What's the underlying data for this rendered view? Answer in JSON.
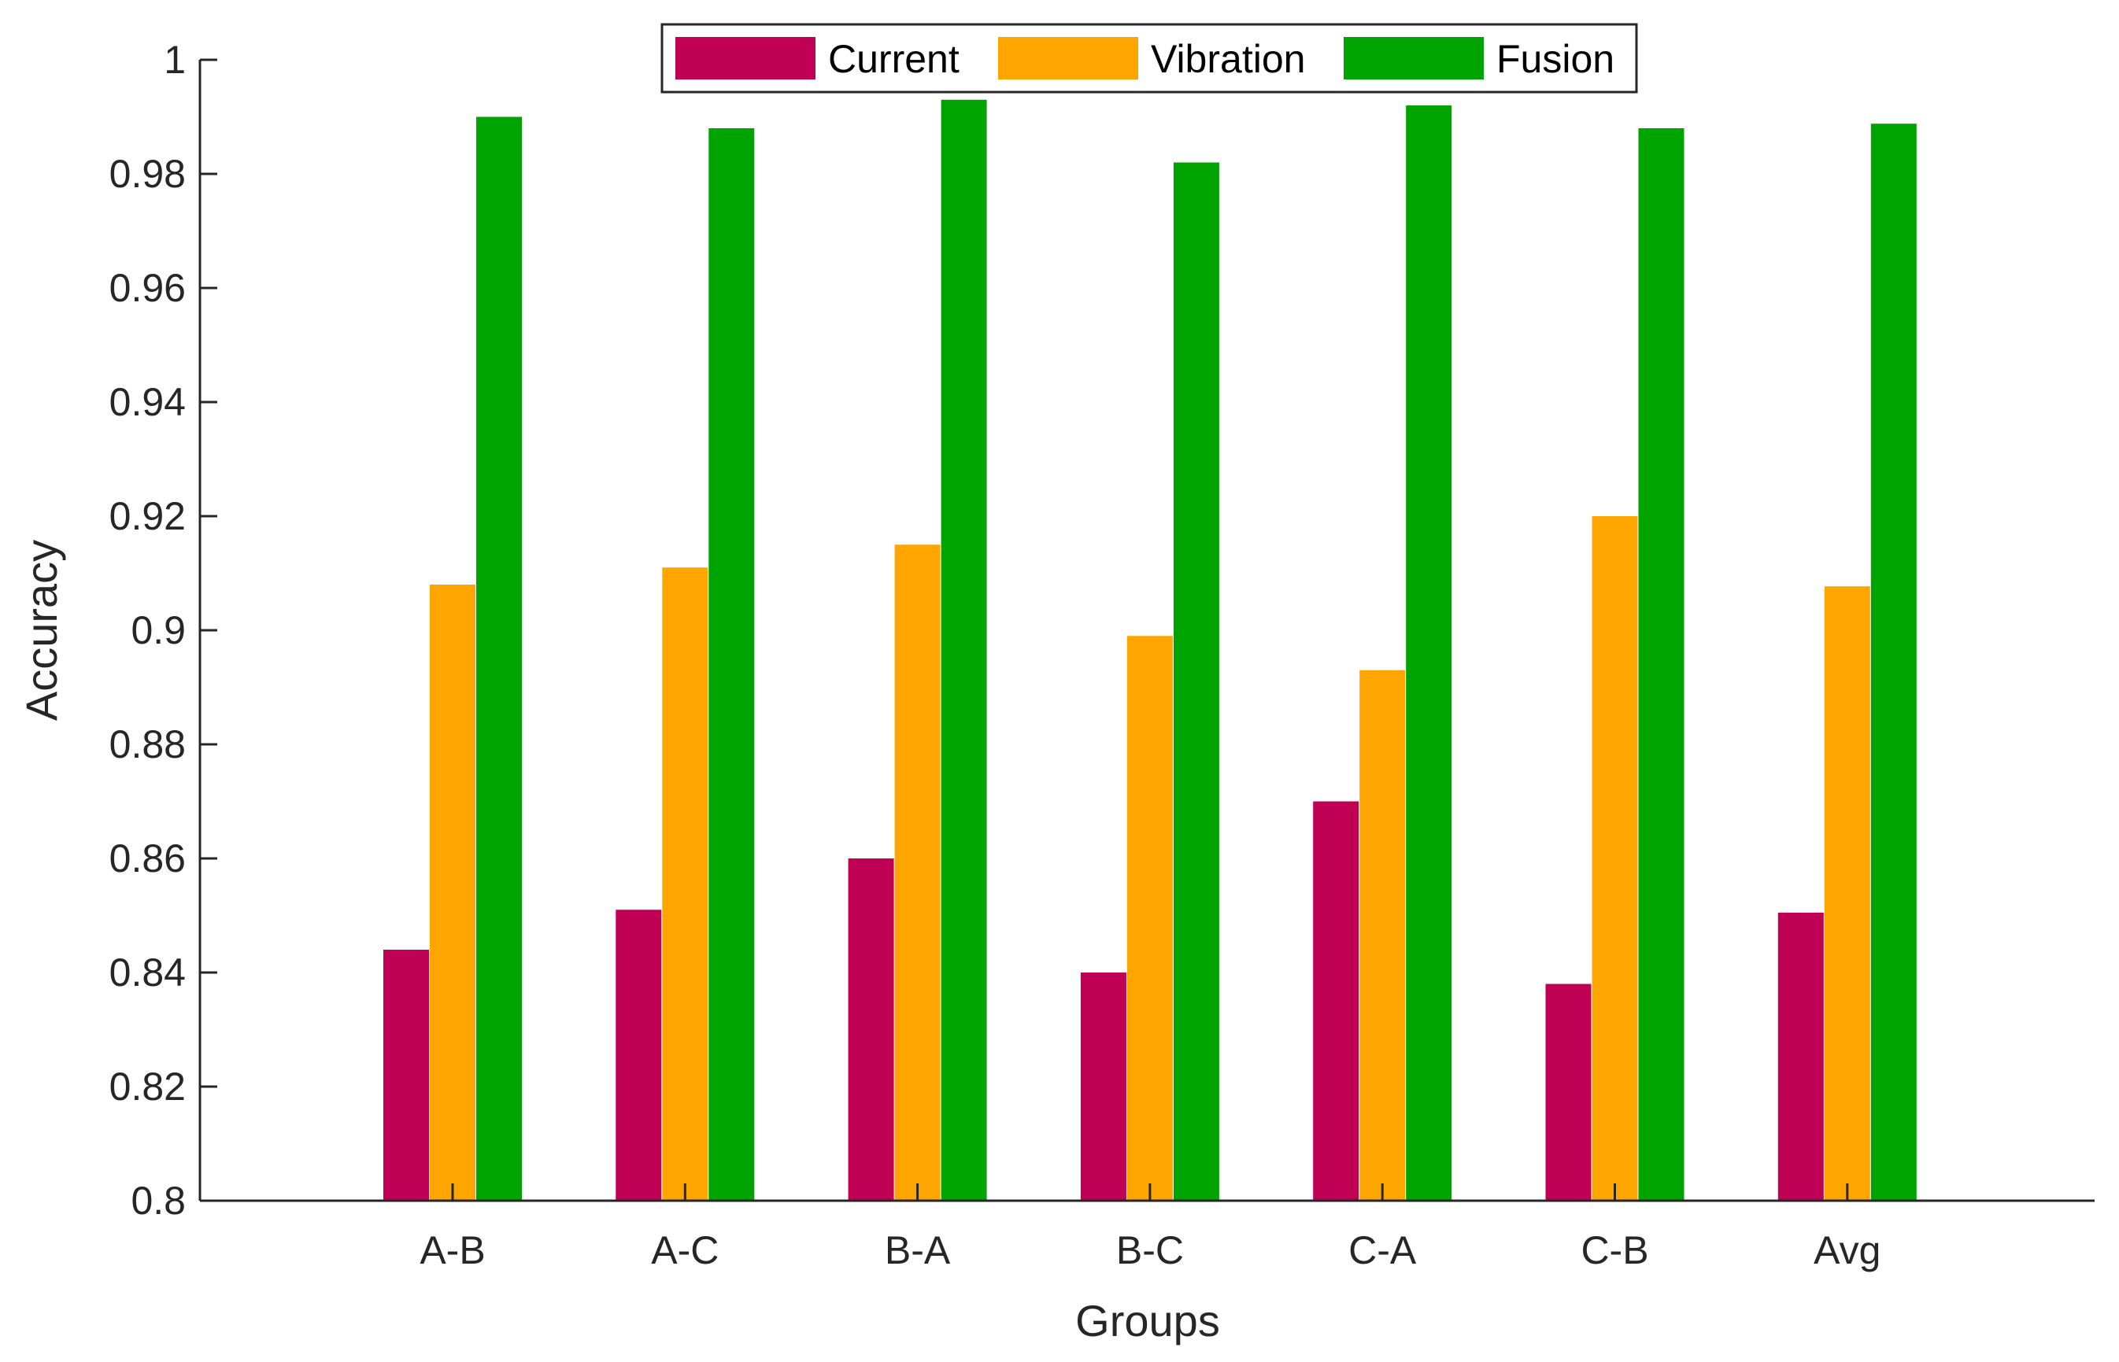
{
  "chart_data": {
    "type": "bar",
    "title": "",
    "xlabel": "Groups",
    "ylabel": "Accuracy",
    "ylim": [
      0.8,
      1.0
    ],
    "yticks": [
      "0.8",
      "0.82",
      "0.84",
      "0.86",
      "0.88",
      "0.9",
      "0.92",
      "0.94",
      "0.96",
      "0.98",
      "1"
    ],
    "categories": [
      "A-B",
      "A-C",
      "B-A",
      "B-C",
      "C-A",
      "C-B",
      "Avg"
    ],
    "series": [
      {
        "name": "Current",
        "color": "#C00055",
        "values": [
          0.844,
          0.851,
          0.86,
          0.84,
          0.87,
          0.838,
          0.8505
        ]
      },
      {
        "name": "Vibration",
        "color": "#FFA500",
        "values": [
          0.908,
          0.911,
          0.915,
          0.899,
          0.893,
          0.92,
          0.9077
        ]
      },
      {
        "name": "Fusion",
        "color": "#00A400",
        "values": [
          0.99,
          0.988,
          0.993,
          0.982,
          0.992,
          0.988,
          0.9888
        ]
      }
    ],
    "legend": "top-center",
    "grid": false
  }
}
